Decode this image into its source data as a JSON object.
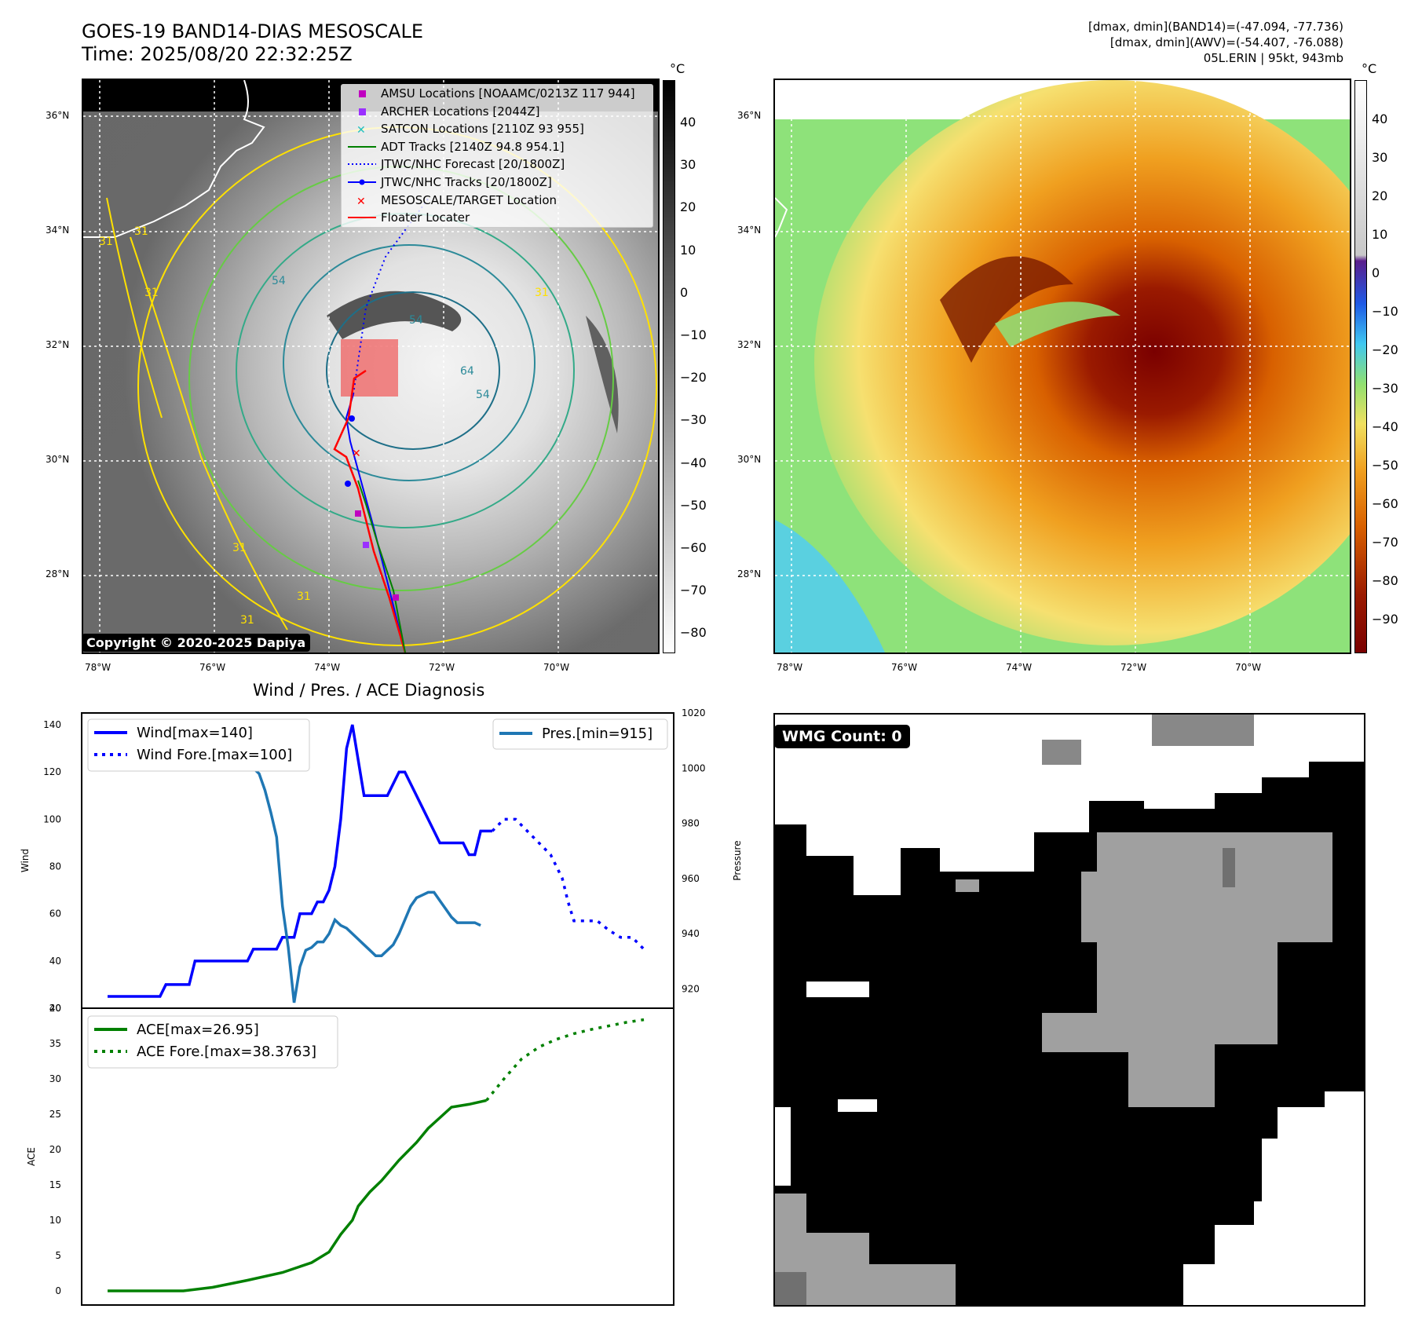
{
  "header": {
    "title_line1": "GOES-19 BAND14-DIAS MESOSCALE",
    "title_line2": "Time: 2025/08/20 22:32:25Z",
    "stats_line1": "[dmax, dmin](BAND14)=(-47.094, -77.736)",
    "stats_line2": "[dmax, dmin](AWV)=(-54.407, -76.088)",
    "stats_line3": "05L.ERIN | 95kt, 943mb"
  },
  "map_axes": {
    "lat_labels": [
      "36°N",
      "34°N",
      "32°N",
      "30°N",
      "28°N"
    ],
    "lon_labels": [
      "78°W",
      "76°W",
      "74°W",
      "72°W",
      "70°W"
    ]
  },
  "ir_panel": {
    "colorbar_unit": "°C",
    "colorbar_ticks": [
      "40",
      "30",
      "20",
      "10",
      "0",
      "−10",
      "−20",
      "−30",
      "−40",
      "−50",
      "−60",
      "−70",
      "−80"
    ],
    "contour_labels": [
      "31",
      "31",
      "31",
      "31",
      "54",
      "54",
      "64",
      "54",
      "31",
      "31",
      "31"
    ],
    "copyright": "Copyright © 2020-2025 Dapiya",
    "legend": [
      {
        "label": "AMSU Locations [NOAAMC/0213Z 117 944]",
        "symbol": "square",
        "color": "#c000c0"
      },
      {
        "label": "ARCHER Locations [2044Z]",
        "symbol": "square",
        "color": "#9b30ff"
      },
      {
        "label": "SATCON Locations [2110Z 93 955]",
        "symbol": "x",
        "color": "#20c0c0"
      },
      {
        "label": "ADT Tracks [2140Z 94.8 954.1]",
        "symbol": "line",
        "color": "#008000"
      },
      {
        "label": "JTWC/NHC Forecast [20/1800Z]",
        "symbol": "dotted",
        "color": "#0000ff"
      },
      {
        "label": "JTWC/NHC Tracks [20/1800Z]",
        "symbol": "line-dot",
        "color": "#0000ff"
      },
      {
        "label": "MESOSCALE/TARGET Location",
        "symbol": "x",
        "color": "#ff0000"
      },
      {
        "label": "Floater Locater",
        "symbol": "line",
        "color": "#ff0000"
      }
    ]
  },
  "wv_panel": {
    "colorbar_unit": "°C",
    "colorbar_ticks": [
      "40",
      "30",
      "20",
      "10",
      "0",
      "−10",
      "−20",
      "−30",
      "−40",
      "−50",
      "−60",
      "−70",
      "−80",
      "−90"
    ]
  },
  "wmg_panel": {
    "label": "WMG Count: 0"
  },
  "chart_data": [
    {
      "type": "line",
      "title": "Wind / Pres. / ACE Diagnosis",
      "xlabel": "",
      "ylabel": "Wind",
      "y2label": "Pressure",
      "ylim": [
        20,
        145
      ],
      "y2lim": [
        913,
        1020
      ],
      "yticks": [
        20,
        40,
        60,
        80,
        100,
        120,
        140
      ],
      "y2ticks": [
        920,
        940,
        960,
        980,
        1000,
        1020
      ],
      "x": [
        0,
        1,
        2,
        3,
        4,
        5,
        6,
        7,
        8,
        9,
        10,
        11,
        12,
        13,
        14,
        15,
        16,
        17,
        18,
        19,
        20,
        21,
        22,
        23,
        24,
        25,
        26,
        27,
        28,
        29,
        30,
        31,
        32,
        33,
        34,
        35,
        36,
        37,
        38,
        39,
        40,
        41,
        42,
        43,
        44,
        45,
        46,
        47,
        48,
        49,
        50,
        51,
        52,
        53,
        54,
        55,
        56,
        57,
        58,
        59,
        60,
        61,
        62,
        63,
        64,
        65,
        66,
        67,
        68,
        69,
        70,
        71,
        72,
        73,
        74,
        75,
        76,
        77,
        78,
        79,
        80,
        81,
        82,
        83,
        84,
        85,
        86,
        87,
        88,
        89,
        90,
        91,
        92
      ],
      "series": [
        {
          "name": "Wind[max=140]",
          "color": "#0000ff",
          "style": "solid",
          "x": [
            0,
            9,
            10,
            14,
            15,
            24,
            25,
            29,
            30,
            32,
            33,
            35,
            36,
            37,
            38,
            39,
            40,
            41,
            42,
            43,
            44,
            45,
            46,
            47,
            48,
            50,
            51,
            52,
            53,
            54,
            55,
            56,
            57,
            58,
            59,
            60,
            61,
            62,
            63,
            64,
            65,
            66
          ],
          "values": [
            25,
            25,
            30,
            30,
            40,
            40,
            45,
            45,
            50,
            50,
            60,
            60,
            65,
            65,
            70,
            80,
            100,
            130,
            140,
            125,
            110,
            110,
            110,
            110,
            110,
            120,
            120,
            115,
            110,
            105,
            100,
            95,
            90,
            90,
            90,
            90,
            90,
            85,
            85,
            95,
            95,
            95
          ]
        },
        {
          "name": "Wind Fore.[max=100]",
          "color": "#0000ff",
          "style": "dotted",
          "x": [
            66,
            68,
            70,
            72,
            74,
            76,
            78,
            79,
            80,
            82,
            84,
            86,
            88,
            90,
            92
          ],
          "values": [
            95,
            100,
            100,
            95,
            90,
            85,
            75,
            65,
            57,
            57,
            57,
            53,
            50,
            50,
            45
          ]
        },
        {
          "name": "Pres.[min=915]",
          "color": "#1f77b4",
          "style": "solid",
          "axis": "right",
          "x": [
            0,
            1,
            2,
            3,
            4,
            5,
            6,
            7,
            8,
            9,
            10,
            11,
            12,
            13,
            14,
            15,
            16,
            17,
            18,
            19,
            20,
            21,
            22,
            23,
            24,
            25,
            26,
            27,
            28,
            29,
            30,
            31,
            32,
            33,
            34,
            35,
            36,
            37,
            38,
            39,
            40,
            41,
            42,
            43,
            44,
            45,
            46,
            47,
            48,
            49,
            50,
            51,
            52,
            53,
            54,
            55,
            56,
            57,
            58,
            59,
            60,
            61,
            62,
            63,
            64
          ],
          "values": [
            1015,
            1015,
            1010,
            1008,
            1007,
            1006,
            1006,
            1006,
            1005,
            1005,
            1005,
            1005,
            1004,
            1004,
            1003,
            1003,
            1003,
            1003,
            1003,
            1003,
            1003,
            1001,
            1000,
            1000,
            1000,
            1000,
            998,
            992,
            984,
            975,
            950,
            935,
            915,
            928,
            934,
            935,
            937,
            937,
            940,
            945,
            943,
            942,
            940,
            938,
            936,
            934,
            932,
            932,
            934,
            936,
            940,
            945,
            950,
            953,
            954,
            955,
            955,
            952,
            949,
            946,
            944,
            944,
            944,
            944,
            943
          ]
        }
      ]
    },
    {
      "type": "line",
      "title": "",
      "xlabel": "",
      "ylabel": "ACE",
      "ylim": [
        -2,
        40
      ],
      "yticks": [
        0,
        5,
        10,
        15,
        20,
        25,
        30,
        35,
        40
      ],
      "series": [
        {
          "name": "ACE[max=26.95]",
          "color": "#008000",
          "style": "solid",
          "x": [
            0,
            13,
            18,
            24,
            30,
            35,
            38,
            40,
            42,
            43,
            45,
            47,
            50,
            53,
            55,
            57,
            59,
            62,
            65
          ],
          "values": [
            0,
            0,
            0.5,
            1.5,
            2.6,
            4,
            5.5,
            8,
            10,
            12,
            14,
            15.6,
            18.5,
            21,
            23,
            24.5,
            26,
            26.4,
            26.95
          ]
        },
        {
          "name": "ACE Fore.[max=38.3763]",
          "color": "#008000",
          "style": "dotted",
          "x": [
            65,
            68,
            71,
            74,
            77,
            80,
            83,
            86,
            89,
            92
          ],
          "values": [
            26.95,
            30,
            32.8,
            34.5,
            35.6,
            36.4,
            37,
            37.5,
            38,
            38.3763
          ]
        }
      ]
    }
  ]
}
